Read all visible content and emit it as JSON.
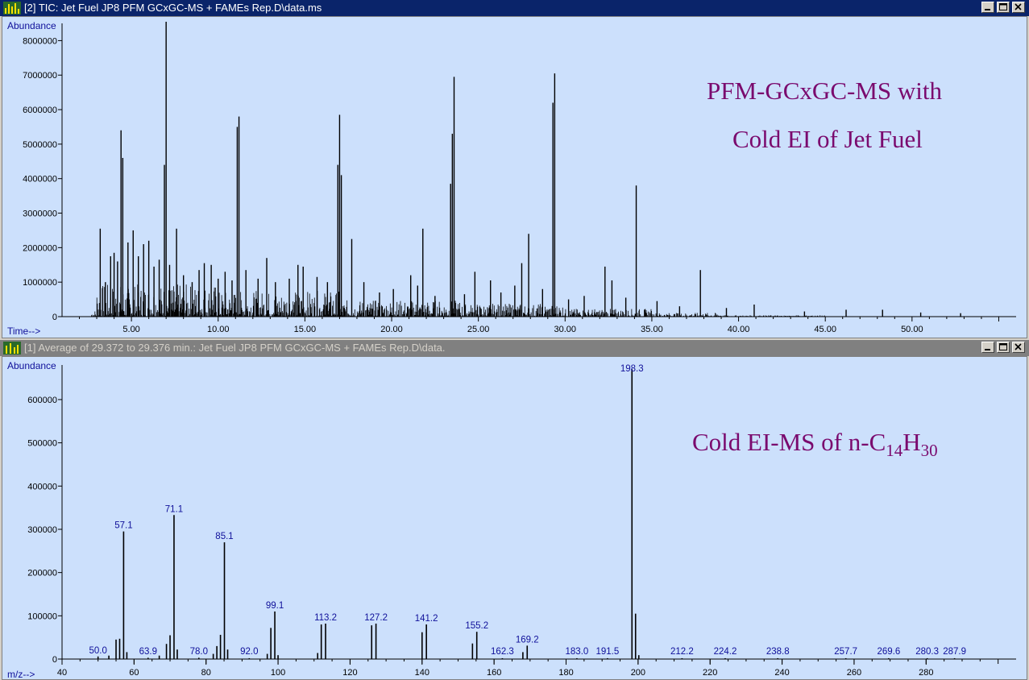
{
  "windows": [
    {
      "title": "[2] TIC: Jet Fuel JP8 PFM GCxGC-MS + FAMEs Rep.D\\data.ms"
    },
    {
      "title": "[1] Average of 29.372 to 29.376 min.: Jet Fuel JP8 PFM GCxGC-MS + FAMEs Rep.D\\data."
    }
  ],
  "annotations": {
    "top_line1": "PFM-GCxGC-MS with",
    "top_line2": "Cold EI of Jet Fuel",
    "bottom_prefix": "Cold EI-MS of n-C",
    "bottom_sub1": "14",
    "bottom_mid": "H",
    "bottom_sub2": "30"
  },
  "colors": {
    "plot_bg": "#cce0fc",
    "active_title": "#0a246a",
    "inactive_title": "#808080",
    "annotation": "#7a0a6e",
    "label_blue": "#10109a"
  },
  "chart_data": [
    {
      "type": "line",
      "ylabel": "Abundance",
      "xlabel": "Time-->",
      "xlim": [
        1.0,
        56.0
      ],
      "ylim": [
        0,
        8500000
      ],
      "x_ticks": [
        "5.00",
        "10.00",
        "15.00",
        "20.00",
        "25.00",
        "30.00",
        "35.00",
        "40.00",
        "45.00",
        "50.00"
      ],
      "y_ticks": [
        "0",
        "1000000",
        "2000000",
        "3000000",
        "4000000",
        "5000000",
        "6000000",
        "7000000",
        "8000000"
      ],
      "peaks": [
        [
          3.2,
          2550000
        ],
        [
          3.5,
          1000000
        ],
        [
          3.8,
          1750000
        ],
        [
          4.0,
          1850000
        ],
        [
          4.2,
          1600000
        ],
        [
          4.4,
          5400000
        ],
        [
          4.5,
          4600000
        ],
        [
          4.8,
          2150000
        ],
        [
          5.1,
          2500000
        ],
        [
          5.4,
          1750000
        ],
        [
          5.7,
          2100000
        ],
        [
          6.0,
          2200000
        ],
        [
          6.3,
          1450000
        ],
        [
          6.6,
          1650000
        ],
        [
          6.9,
          4400000
        ],
        [
          7.0,
          8900000
        ],
        [
          7.2,
          1500000
        ],
        [
          7.6,
          2550000
        ],
        [
          8.0,
          1200000
        ],
        [
          8.5,
          1000000
        ],
        [
          8.9,
          1350000
        ],
        [
          9.2,
          1550000
        ],
        [
          9.6,
          1500000
        ],
        [
          10.0,
          1100000
        ],
        [
          10.4,
          1300000
        ],
        [
          10.8,
          1050000
        ],
        [
          11.1,
          5500000
        ],
        [
          11.2,
          5800000
        ],
        [
          11.6,
          1350000
        ],
        [
          12.3,
          1100000
        ],
        [
          12.8,
          1700000
        ],
        [
          13.3,
          1000000
        ],
        [
          14.1,
          1100000
        ],
        [
          14.6,
          1500000
        ],
        [
          14.9,
          1450000
        ],
        [
          15.7,
          1150000
        ],
        [
          16.3,
          1000000
        ],
        [
          16.9,
          4400000
        ],
        [
          17.0,
          5850000
        ],
        [
          17.1,
          4100000
        ],
        [
          17.7,
          2250000
        ],
        [
          18.4,
          1000000
        ],
        [
          19.3,
          700000
        ],
        [
          20.1,
          800000
        ],
        [
          21.1,
          1200000
        ],
        [
          21.5,
          900000
        ],
        [
          21.8,
          2550000
        ],
        [
          22.5,
          600000
        ],
        [
          23.4,
          3850000
        ],
        [
          23.5,
          5300000
        ],
        [
          23.6,
          6950000
        ],
        [
          24.2,
          650000
        ],
        [
          24.8,
          1300000
        ],
        [
          25.7,
          1050000
        ],
        [
          26.3,
          700000
        ],
        [
          27.1,
          900000
        ],
        [
          27.5,
          1550000
        ],
        [
          27.9,
          2400000
        ],
        [
          28.7,
          800000
        ],
        [
          29.3,
          6200000
        ],
        [
          29.4,
          7050000
        ],
        [
          30.2,
          500000
        ],
        [
          31.1,
          600000
        ],
        [
          32.3,
          1450000
        ],
        [
          32.7,
          1050000
        ],
        [
          33.5,
          550000
        ],
        [
          34.1,
          3800000
        ],
        [
          35.3,
          450000
        ],
        [
          36.6,
          300000
        ],
        [
          37.8,
          1350000
        ],
        [
          39.3,
          250000
        ],
        [
          40.9,
          350000
        ],
        [
          43.8,
          150000
        ],
        [
          46.2,
          200000
        ],
        [
          48.3,
          200000
        ],
        [
          50.5,
          120000
        ],
        [
          52.8,
          100000
        ]
      ]
    },
    {
      "type": "bar",
      "ylabel": "Abundance",
      "xlabel": "m/z-->",
      "xlim": [
        40,
        305
      ],
      "ylim": [
        0,
        680000
      ],
      "x_ticks": [
        "40",
        "60",
        "80",
        "100",
        "120",
        "140",
        "160",
        "180",
        "200",
        "220",
        "240",
        "260",
        "280"
      ],
      "y_ticks": [
        "0",
        "100000",
        "200000",
        "300000",
        "400000",
        "500000",
        "600000"
      ],
      "peaks": [
        {
          "mz": 50.0,
          "abundance": 6000,
          "label": "50.0"
        },
        {
          "mz": 53.0,
          "abundance": 8000,
          "label": ""
        },
        {
          "mz": 55.0,
          "abundance": 45000,
          "label": ""
        },
        {
          "mz": 56.0,
          "abundance": 47000,
          "label": ""
        },
        {
          "mz": 57.1,
          "abundance": 295000,
          "label": "57.1"
        },
        {
          "mz": 58.0,
          "abundance": 16000,
          "label": ""
        },
        {
          "mz": 63.9,
          "abundance": 3000,
          "label": "63.9"
        },
        {
          "mz": 67.0,
          "abundance": 8000,
          "label": ""
        },
        {
          "mz": 69.0,
          "abundance": 35000,
          "label": ""
        },
        {
          "mz": 70.0,
          "abundance": 55000,
          "label": ""
        },
        {
          "mz": 71.1,
          "abundance": 333000,
          "label": "71.1"
        },
        {
          "mz": 72.0,
          "abundance": 22000,
          "label": ""
        },
        {
          "mz": 78.0,
          "abundance": 3000,
          "label": "78.0"
        },
        {
          "mz": 82.0,
          "abundance": 12000,
          "label": ""
        },
        {
          "mz": 83.0,
          "abundance": 30000,
          "label": ""
        },
        {
          "mz": 84.0,
          "abundance": 56000,
          "label": ""
        },
        {
          "mz": 85.1,
          "abundance": 270000,
          "label": "85.1"
        },
        {
          "mz": 86.0,
          "abundance": 22000,
          "label": ""
        },
        {
          "mz": 92.0,
          "abundance": 2000,
          "label": "92.0"
        },
        {
          "mz": 97.0,
          "abundance": 12000,
          "label": ""
        },
        {
          "mz": 98.0,
          "abundance": 72000,
          "label": ""
        },
        {
          "mz": 99.1,
          "abundance": 110000,
          "label": "99.1"
        },
        {
          "mz": 100.0,
          "abundance": 9000,
          "label": ""
        },
        {
          "mz": 111.0,
          "abundance": 14000,
          "label": ""
        },
        {
          "mz": 112.0,
          "abundance": 80000,
          "label": ""
        },
        {
          "mz": 113.2,
          "abundance": 82000,
          "label": "113.2"
        },
        {
          "mz": 126.0,
          "abundance": 78000,
          "label": ""
        },
        {
          "mz": 127.2,
          "abundance": 82000,
          "label": "127.2"
        },
        {
          "mz": 140.0,
          "abundance": 62000,
          "label": ""
        },
        {
          "mz": 141.2,
          "abundance": 80000,
          "label": "141.2"
        },
        {
          "mz": 154.0,
          "abundance": 36000,
          "label": ""
        },
        {
          "mz": 155.2,
          "abundance": 63000,
          "label": "155.2"
        },
        {
          "mz": 162.3,
          "abundance": 2000,
          "label": "162.3"
        },
        {
          "mz": 168.0,
          "abundance": 16000,
          "label": ""
        },
        {
          "mz": 169.2,
          "abundance": 31000,
          "label": "169.2"
        },
        {
          "mz": 183.0,
          "abundance": 2000,
          "label": "183.0"
        },
        {
          "mz": 191.5,
          "abundance": 2000,
          "label": "191.5"
        },
        {
          "mz": 198.3,
          "abundance": 670000,
          "label": "198.3"
        },
        {
          "mz": 199.3,
          "abundance": 105000,
          "label": ""
        },
        {
          "mz": 200.2,
          "abundance": 9000,
          "label": ""
        },
        {
          "mz": 212.2,
          "abundance": 2000,
          "label": "212.2"
        },
        {
          "mz": 224.2,
          "abundance": 2000,
          "label": "224.2"
        },
        {
          "mz": 238.8,
          "abundance": 2000,
          "label": "238.8"
        },
        {
          "mz": 257.7,
          "abundance": 2000,
          "label": "257.7"
        },
        {
          "mz": 269.6,
          "abundance": 2000,
          "label": "269.6"
        },
        {
          "mz": 280.3,
          "abundance": 2000,
          "label": "280.3"
        },
        {
          "mz": 287.9,
          "abundance": 2000,
          "label": "287.9"
        }
      ]
    }
  ]
}
